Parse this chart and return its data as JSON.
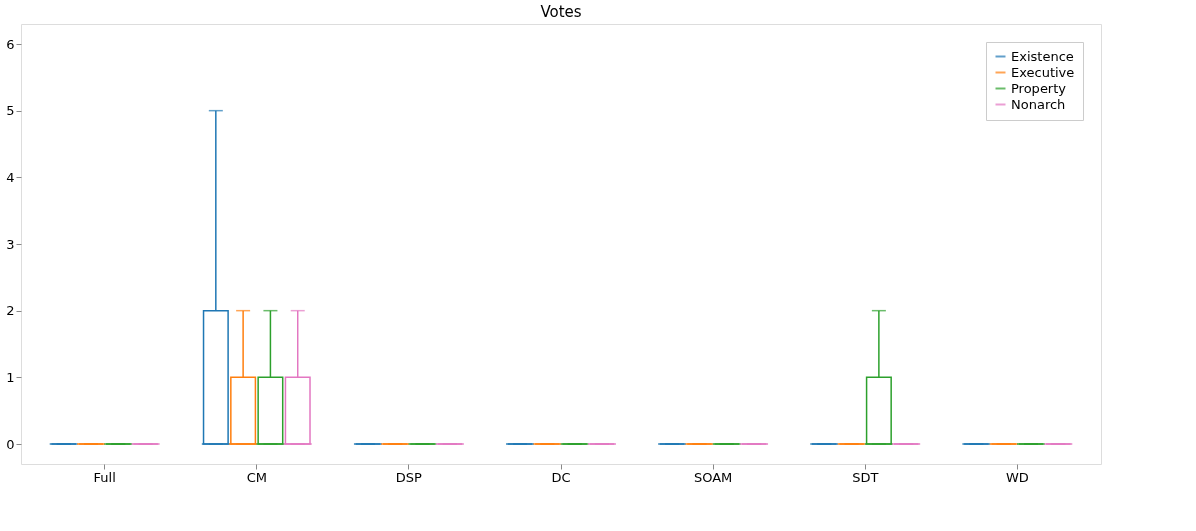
{
  "chart_data": {
    "type": "box",
    "title": "Votes",
    "categories": [
      "Full",
      "CM",
      "DSP",
      "DC",
      "SOAM",
      "SDT",
      "WD"
    ],
    "ylim": [
      -0.3,
      6.3
    ],
    "yticks": [
      0,
      1,
      2,
      3,
      4,
      5,
      6
    ],
    "grid": false,
    "legend": "top right",
    "series": [
      {
        "name": "Existence",
        "color": "#1f77b4",
        "boxes": [
          {
            "low": 0,
            "q1": 0,
            "median": 0,
            "q3": 0,
            "high": 0
          },
          {
            "low": 0,
            "q1": 0,
            "median": 0,
            "q3": 2,
            "high": 5
          },
          {
            "low": 0,
            "q1": 0,
            "median": 0,
            "q3": 0,
            "high": 0
          },
          {
            "low": 0,
            "q1": 0,
            "median": 0,
            "q3": 0,
            "high": 0
          },
          {
            "low": 0,
            "q1": 0,
            "median": 0,
            "q3": 0,
            "high": 0
          },
          {
            "low": 0,
            "q1": 0,
            "median": 0,
            "q3": 0,
            "high": 0
          },
          {
            "low": 0,
            "q1": 0,
            "median": 0,
            "q3": 0,
            "high": 0
          }
        ]
      },
      {
        "name": "Executive",
        "color": "#ff7f0e",
        "boxes": [
          {
            "low": 0,
            "q1": 0,
            "median": 0,
            "q3": 0,
            "high": 0
          },
          {
            "low": 0,
            "q1": 0,
            "median": 0,
            "q3": 1,
            "high": 2
          },
          {
            "low": 0,
            "q1": 0,
            "median": 0,
            "q3": 0,
            "high": 0
          },
          {
            "low": 0,
            "q1": 0,
            "median": 0,
            "q3": 0,
            "high": 0
          },
          {
            "low": 0,
            "q1": 0,
            "median": 0,
            "q3": 0,
            "high": 0
          },
          {
            "low": 0,
            "q1": 0,
            "median": 0,
            "q3": 0,
            "high": 0
          },
          {
            "low": 0,
            "q1": 0,
            "median": 0,
            "q3": 0,
            "high": 0
          }
        ]
      },
      {
        "name": "Property",
        "color": "#2ca02c",
        "boxes": [
          {
            "low": 0,
            "q1": 0,
            "median": 0,
            "q3": 0,
            "high": 0
          },
          {
            "low": 0,
            "q1": 0,
            "median": 0,
            "q3": 1,
            "high": 2
          },
          {
            "low": 0,
            "q1": 0,
            "median": 0,
            "q3": 0,
            "high": 0
          },
          {
            "low": 0,
            "q1": 0,
            "median": 0,
            "q3": 0,
            "high": 0
          },
          {
            "low": 0,
            "q1": 0,
            "median": 0,
            "q3": 0,
            "high": 0
          },
          {
            "low": 0,
            "q1": 0,
            "median": 0,
            "q3": 1,
            "high": 2
          },
          {
            "low": 0,
            "q1": 0,
            "median": 0,
            "q3": 0,
            "high": 0
          }
        ]
      },
      {
        "name": "Nonarch",
        "color": "#e377c2",
        "boxes": [
          {
            "low": 0,
            "q1": 0,
            "median": 0,
            "q3": 0,
            "high": 0
          },
          {
            "low": 0,
            "q1": 0,
            "median": 0,
            "q3": 1,
            "high": 2
          },
          {
            "low": 0,
            "q1": 0,
            "median": 0,
            "q3": 0,
            "high": 0
          },
          {
            "low": 0,
            "q1": 0,
            "median": 0,
            "q3": 0,
            "high": 0
          },
          {
            "low": 0,
            "q1": 0,
            "median": 0,
            "q3": 0,
            "high": 0
          },
          {
            "low": 0,
            "q1": 0,
            "median": 0,
            "q3": 0,
            "high": 0
          },
          {
            "low": 0,
            "q1": 0,
            "median": 0,
            "q3": 0,
            "high": 0
          }
        ]
      }
    ]
  }
}
